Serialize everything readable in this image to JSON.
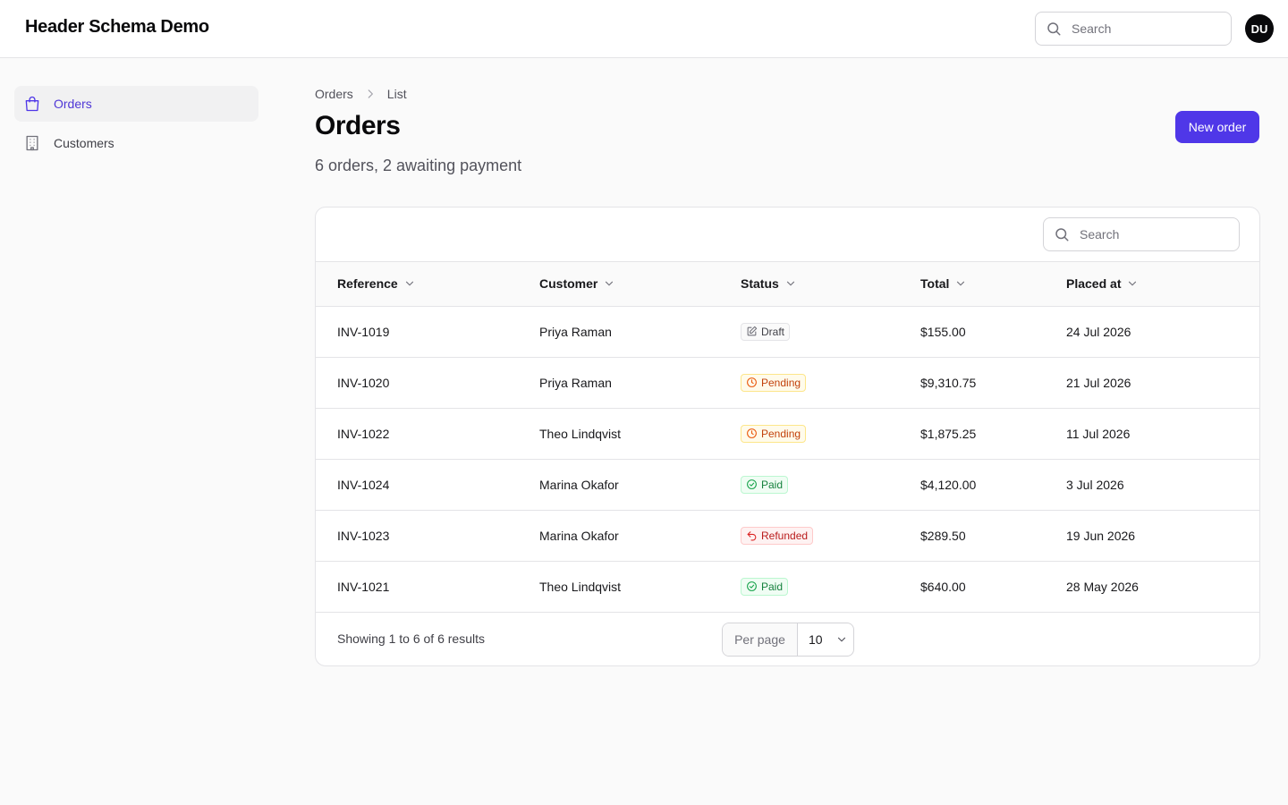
{
  "app": {
    "title": "Header Schema Demo"
  },
  "header": {
    "search_placeholder": "Search",
    "avatar_initials": "DU"
  },
  "sidebar": {
    "items": [
      {
        "label": "Orders",
        "icon": "shopping-bag-icon",
        "active": true
      },
      {
        "label": "Customers",
        "icon": "building-icon",
        "active": false
      }
    ]
  },
  "breadcrumb": {
    "items": [
      "Orders",
      "List"
    ]
  },
  "page": {
    "title": "Orders",
    "subtitle": "6 orders, 2 awaiting payment",
    "new_button": "New order"
  },
  "table": {
    "search_placeholder": "Search",
    "columns": [
      "Reference",
      "Customer",
      "Status",
      "Total",
      "Placed at"
    ],
    "rows": [
      {
        "reference": "INV-1019",
        "customer": "Priya Raman",
        "status": "Draft",
        "status_kind": "draft",
        "total": "$155.00",
        "placed_at": "24 Jul 2026"
      },
      {
        "reference": "INV-1020",
        "customer": "Priya Raman",
        "status": "Pending",
        "status_kind": "pending",
        "total": "$9,310.75",
        "placed_at": "21 Jul 2026"
      },
      {
        "reference": "INV-1022",
        "customer": "Theo Lindqvist",
        "status": "Pending",
        "status_kind": "pending",
        "total": "$1,875.25",
        "placed_at": "11 Jul 2026"
      },
      {
        "reference": "INV-1024",
        "customer": "Marina Okafor",
        "status": "Paid",
        "status_kind": "paid",
        "total": "$4,120.00",
        "placed_at": "3 Jul 2026"
      },
      {
        "reference": "INV-1023",
        "customer": "Marina Okafor",
        "status": "Refunded",
        "status_kind": "refunded",
        "total": "$289.50",
        "placed_at": "19 Jun 2026"
      },
      {
        "reference": "INV-1021",
        "customer": "Theo Lindqvist",
        "status": "Paid",
        "status_kind": "paid",
        "total": "$640.00",
        "placed_at": "28 May 2026"
      }
    ],
    "footer": {
      "results_text": "Showing 1 to 6 of 6 results",
      "per_page_label": "Per page",
      "per_page_value": "10"
    }
  },
  "colors": {
    "accent": "#4f37e8",
    "draft": "#3f3f46",
    "pending": "#c2410c",
    "paid": "#15803d",
    "refunded": "#b91c1c"
  }
}
